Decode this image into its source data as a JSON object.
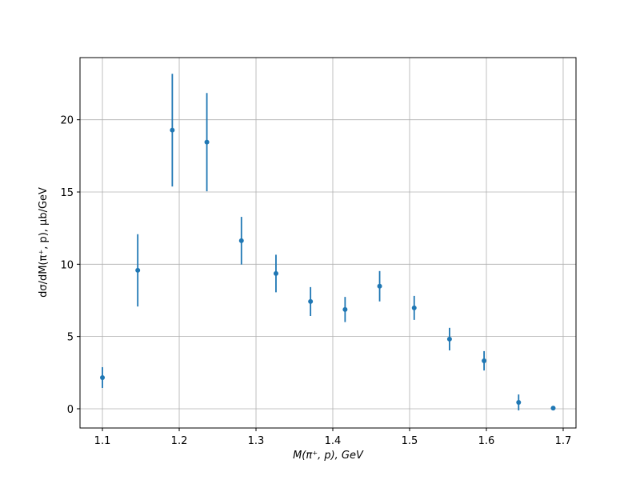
{
  "chart_data": {
    "type": "scatter",
    "x_label": "M(π⁺, p), GeV",
    "y_label": "dσ/dM(π⁺, p), μb/GeV",
    "x": [
      1.1,
      1.146,
      1.191,
      1.236,
      1.281,
      1.326,
      1.371,
      1.416,
      1.461,
      1.506,
      1.552,
      1.597,
      1.642,
      1.687
    ],
    "values": [
      2.16,
      9.58,
      19.28,
      18.45,
      11.63,
      9.36,
      7.42,
      6.87,
      8.48,
      6.98,
      4.82,
      3.32,
      0.44,
      0.05
    ],
    "errors": [
      0.72,
      2.5,
      3.9,
      3.4,
      1.65,
      1.3,
      1.0,
      0.87,
      1.05,
      0.83,
      0.78,
      0.67,
      0.55,
      0.05
    ],
    "color": "#1f77b4",
    "xlim": [
      1.0708,
      1.7167
    ],
    "ylim": [
      -1.33,
      24.3
    ],
    "xticks": [
      1.1,
      1.2,
      1.3,
      1.4,
      1.5,
      1.6,
      1.7
    ],
    "yticks": [
      0,
      5,
      10,
      15,
      20
    ],
    "grid": true
  }
}
